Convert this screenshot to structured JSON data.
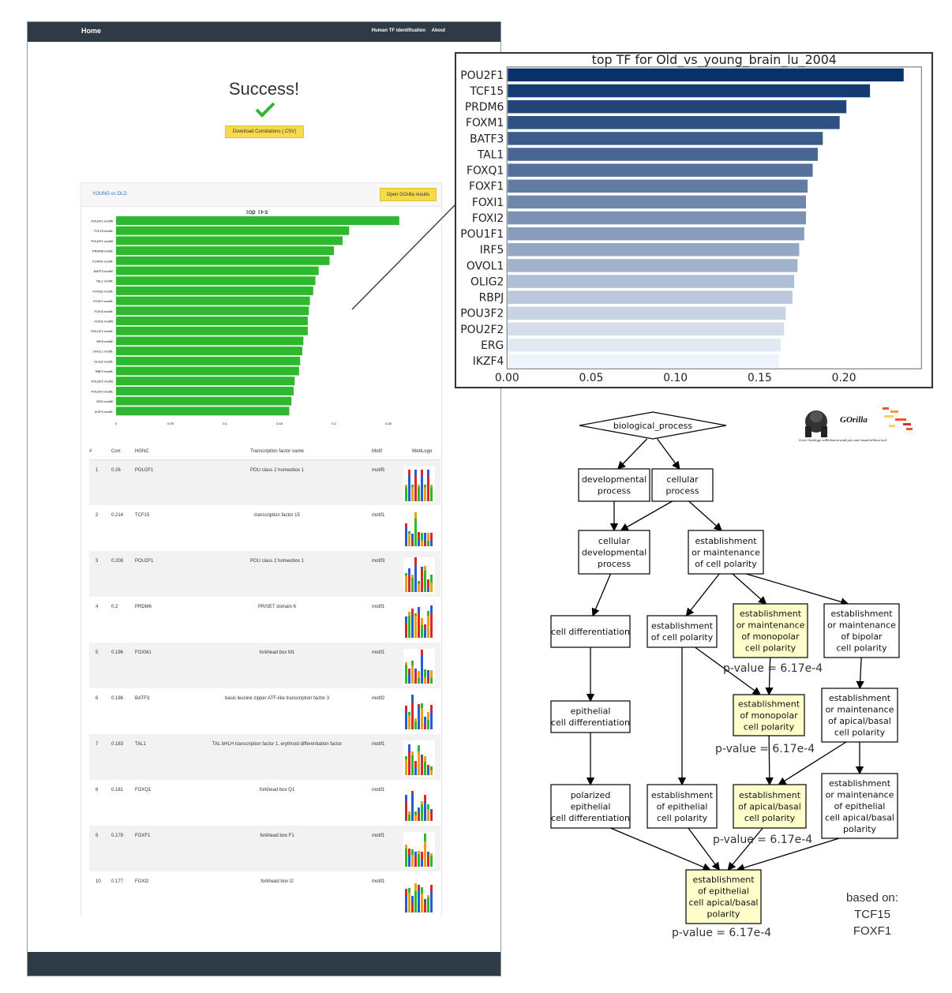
{
  "navbar": {
    "home": "Home",
    "links": [
      "Human TF identification",
      "About"
    ]
  },
  "success": {
    "title": "Success!",
    "download_label": "Download Correlations (.CSV)"
  },
  "panel": {
    "comparison": "YOUNG vs OLD",
    "gorilla_button": "Open GOrilla results"
  },
  "small_chart_data": {
    "type": "bar",
    "title": "Top TFs",
    "categories": [
      "POU2F1 motif5",
      "TCF15 motif1",
      "POU2F1 motif3",
      "PRDM6 motif1",
      "FOXM1 motif1",
      "BATF3 motif2",
      "TAL1 motif1",
      "FOXQ1 motif1",
      "FOXF1 motif1",
      "FOXI2 motif1",
      "FOXI1 motif4",
      "POU1F1 motif1",
      "IRF5 motif2",
      "OVOL1 motif1",
      "OLIG2 motif1",
      "RBPJ motif1",
      "POU3F2 motif3",
      "POU2F2 motif1",
      "ERG motif2",
      "IKZF4 motif1"
    ],
    "values": [
      0.26,
      0.214,
      0.208,
      0.2,
      0.196,
      0.186,
      0.183,
      0.181,
      0.178,
      0.177,
      0.176,
      0.176,
      0.172,
      0.171,
      0.169,
      0.168,
      0.164,
      0.163,
      0.161,
      0.159
    ],
    "xticks": [
      "0",
      "0.05",
      "0.1",
      "0.15",
      "0.2",
      "0.25"
    ],
    "xlim": [
      0,
      0.3
    ],
    "color": "#2eb82e"
  },
  "table": {
    "headers": [
      "#",
      "Corr.",
      "HGNC",
      "Transcription factor name",
      "Motif",
      "WebLogo"
    ],
    "rows": [
      {
        "n": "1",
        "corr": "0.26",
        "hgnc": "POU2F1",
        "name": "POU class 2 homeobox 1",
        "motif": "motif5"
      },
      {
        "n": "2",
        "corr": "0.214",
        "hgnc": "TCF15",
        "name": "transcription factor 15",
        "motif": "motif1"
      },
      {
        "n": "3",
        "corr": "0.208",
        "hgnc": "POU2F1",
        "name": "POU class 2 homeobox 1",
        "motif": "motif3"
      },
      {
        "n": "4",
        "corr": "0.2",
        "hgnc": "PRDM6",
        "name": "PR/SET domain 6",
        "motif": "motif1"
      },
      {
        "n": "5",
        "corr": "0.196",
        "hgnc": "FOXM1",
        "name": "forkhead box M1",
        "motif": "motif1"
      },
      {
        "n": "6",
        "corr": "0.186",
        "hgnc": "BATF3",
        "name": "basic leucine zipper ATF-like transcription factor 3",
        "motif": "motif2"
      },
      {
        "n": "7",
        "corr": "0.183",
        "hgnc": "TAL1",
        "name": "TAL bHLH transcription factor 1, erythroid differentiation factor",
        "motif": "motif1"
      },
      {
        "n": "8",
        "corr": "0.181",
        "hgnc": "FOXQ1",
        "name": "forkhead box Q1",
        "motif": "motif1"
      },
      {
        "n": "9",
        "corr": "0.178",
        "hgnc": "FOXF1",
        "name": "forkhead box F1",
        "motif": "motif1"
      },
      {
        "n": "10",
        "corr": "0.177",
        "hgnc": "FOXI2",
        "name": "forkhead box I2",
        "motif": "motif1"
      }
    ]
  },
  "chart_data": {
    "type": "bar",
    "title": "top TF for Old_vs_young_brain_lu_2004",
    "categories": [
      "POU2F1",
      "TCF15",
      "PRDM6",
      "FOXM1",
      "BATF3",
      "TAL1",
      "FOXQ1",
      "FOXF1",
      "FOXI1",
      "FOXI2",
      "POU1F1",
      "IRF5",
      "OVOL1",
      "OLIG2",
      "RBPJ",
      "POU3F2",
      "POU2F2",
      "ERG",
      "IKZF4"
    ],
    "values": [
      0.235,
      0.215,
      0.201,
      0.197,
      0.187,
      0.184,
      0.181,
      0.178,
      0.177,
      0.177,
      0.176,
      0.173,
      0.172,
      0.17,
      0.169,
      0.165,
      0.164,
      0.162,
      0.161
    ],
    "xticks": [
      "0.00",
      "0.05",
      "0.10",
      "0.15",
      "0.20"
    ],
    "xlim": [
      0,
      0.246
    ],
    "color_start": "#08306b",
    "color_end": "#eef4fb"
  },
  "go_graph": {
    "nodes": [
      {
        "id": "bp",
        "lines": [
          "biological_process"
        ],
        "shape": "diamond"
      },
      {
        "id": "dev",
        "lines": [
          "developmental",
          "process"
        ]
      },
      {
        "id": "cell",
        "lines": [
          "cellular",
          "process"
        ]
      },
      {
        "id": "celldev",
        "lines": [
          "cellular",
          "developmental",
          "process"
        ]
      },
      {
        "id": "estcp",
        "lines": [
          "establishment",
          "or maintenance",
          "of cell polarity"
        ]
      },
      {
        "id": "celldiff",
        "lines": [
          "cell differentiation"
        ]
      },
      {
        "id": "estcp2",
        "lines": [
          "establishment",
          "of cell polarity"
        ]
      },
      {
        "id": "mono1",
        "lines": [
          "establishment",
          "or maintenance",
          "of monopolar",
          "cell polarity"
        ],
        "hl": true
      },
      {
        "id": "bip",
        "lines": [
          "establishment",
          "or maintenance",
          "of bipolar",
          "cell polarity"
        ]
      },
      {
        "id": "epi",
        "lines": [
          "epithelial",
          "cell differentiation"
        ]
      },
      {
        "id": "mono2",
        "lines": [
          "establishment",
          "of monopolar",
          "cell polarity"
        ],
        "hl": true
      },
      {
        "id": "apb1",
        "lines": [
          "establishment",
          "or maintenance",
          "of apical/basal",
          "cell polarity"
        ]
      },
      {
        "id": "pol",
        "lines": [
          "polarized",
          "epithelial",
          "cell differentiation"
        ]
      },
      {
        "id": "estepi",
        "lines": [
          "establishment",
          "of epithelial",
          "cell polarity"
        ]
      },
      {
        "id": "apb2",
        "lines": [
          "establishment",
          "of apical/basal",
          "cell polarity"
        ],
        "hl": true
      },
      {
        "id": "apb3",
        "lines": [
          "establishment",
          "or maintenance",
          "of epithelial",
          "cell apical/basal",
          "polarity"
        ]
      },
      {
        "id": "final",
        "lines": [
          "establishment",
          "of epithelial",
          "cell apical/basal",
          "polarity"
        ],
        "hl": true
      }
    ],
    "pvalues": [
      "p-value = 6.17e-4",
      "p-value = 6.17e-4",
      "p-value = 6.17e-4",
      "p-value = 6.17e-4"
    ],
    "highlight_color": "#ffffcc"
  },
  "gorilla_logo": {
    "name": "GOrilla",
    "tagline": "Gene Ontology enRIchment anaLysis and visuaLizAtion tool"
  },
  "based_on": {
    "label": "based on:",
    "genes": [
      "TCF15",
      "FOXF1"
    ]
  }
}
